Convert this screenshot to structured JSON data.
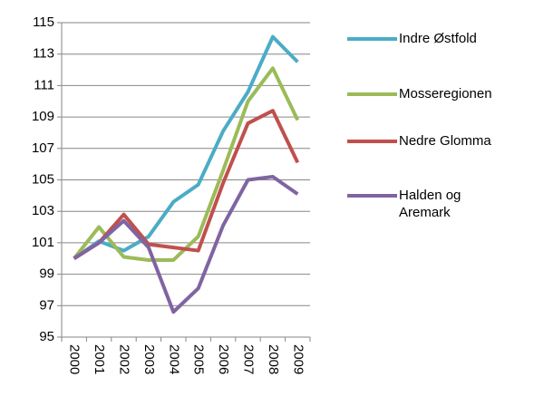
{
  "chart_data": {
    "type": "line",
    "categories": [
      "2000",
      "2001",
      "2002",
      "2003",
      "2004",
      "2005",
      "2006",
      "2007",
      "2008",
      "2009"
    ],
    "series": [
      {
        "name": "Indre Østfold",
        "color": "#4bacc6",
        "values": [
          100,
          101.1,
          100.5,
          101.4,
          103.6,
          104.7,
          108.1,
          110.6,
          114.1,
          112.5
        ]
      },
      {
        "name": "Mosseregionen",
        "color": "#9bbb59",
        "values": [
          100,
          102,
          100.1,
          99.9,
          99.9,
          101.4,
          105.6,
          110,
          112.1,
          108.8
        ]
      },
      {
        "name": "Nedre Glomma",
        "color": "#c0504d",
        "values": [
          100,
          101,
          102.8,
          100.9,
          100.7,
          100.5,
          104.8,
          108.6,
          109.4,
          106.1
        ]
      },
      {
        "name": "Halden og Aremark",
        "color": "#8064a2",
        "values": [
          100,
          101,
          102.4,
          100.7,
          96.6,
          98.1,
          102.1,
          105,
          105.2,
          104.1
        ]
      }
    ],
    "ylim": [
      95,
      115
    ],
    "yticks": [
      95,
      97,
      99,
      101,
      103,
      105,
      107,
      109,
      111,
      113,
      115
    ],
    "grid": true
  }
}
